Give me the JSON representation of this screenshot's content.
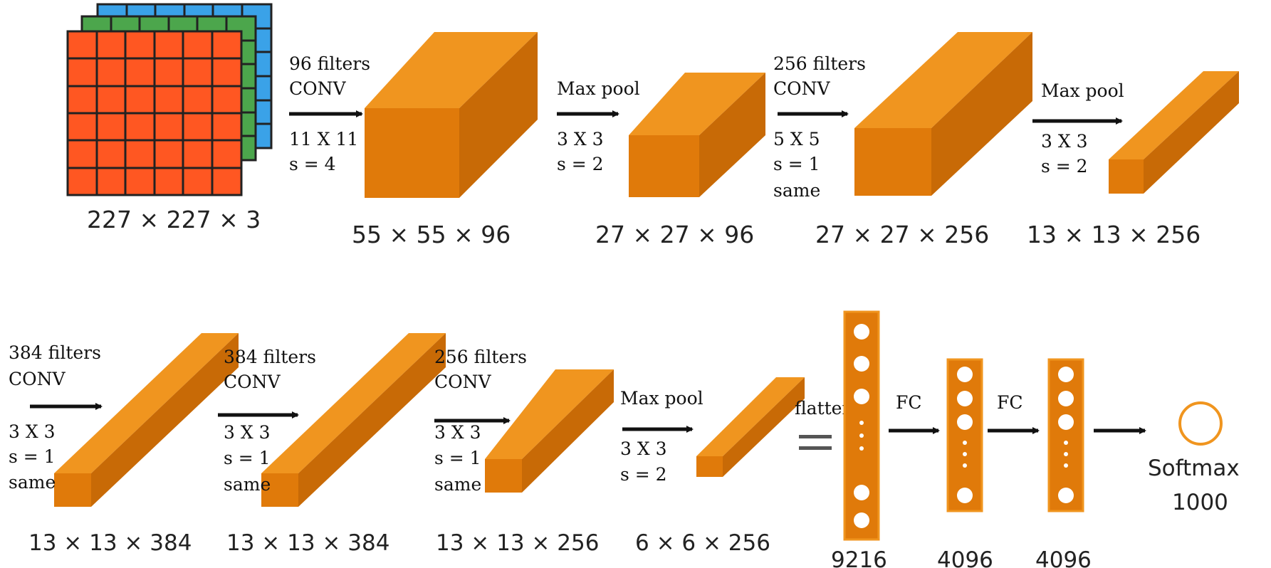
{
  "colors": {
    "block_front": "#E07A0A",
    "block_top": "#F0951F",
    "block_side": "#C86A06",
    "input_red": "#FF5722",
    "input_green": "#4CA64C",
    "input_blue": "#3AA2E8",
    "arrow": "#111111"
  },
  "row1": {
    "input_dim": "227 × 227 × 3",
    "op1": {
      "l1": "96 filters",
      "l2": "CONV",
      "l3": "11 X 11",
      "l4": "s = 4"
    },
    "dim1": "55 × 55 × 96",
    "op2": {
      "l1": "Max pool",
      "l2": "3 X 3",
      "l3": "s = 2"
    },
    "dim2": "27 × 27 × 96",
    "op3": {
      "l1": "256 filters",
      "l2": "CONV",
      "l3": "5 X 5",
      "l4": "s = 1",
      "l5": "same"
    },
    "dim3": "27 × 27 × 256",
    "op4": {
      "l1": "Max pool",
      "l2": "3 X 3",
      "l3": "s = 2"
    },
    "dim4": "13 × 13 × 256"
  },
  "row2": {
    "op5": {
      "l1": "384 filters",
      "l2": "CONV",
      "l3": "3 X 3",
      "l4": "s = 1",
      "l5": "same"
    },
    "dim5": "13 × 13 × 384",
    "op6": {
      "l1": "384 filters",
      "l2": "CONV",
      "l3": "3 X 3",
      "l4": "s = 1",
      "l5": "same"
    },
    "dim6": "13 × 13 × 384",
    "op7": {
      "l1": "256 filters",
      "l2": "CONV",
      "l3": "3 X 3",
      "l4": "s = 1",
      "l5": "same"
    },
    "dim7": "13 × 13 × 256",
    "op8": {
      "l1": "Max pool",
      "l2": "3 X 3",
      "l3": "s = 2"
    },
    "dim8": "6 × 6 × 256",
    "flatten": "flatten",
    "fc1": "FC",
    "fc2": "FC",
    "n1": "9216",
    "n2": "4096",
    "n3": "4096",
    "softmax": "Softmax",
    "softmax_n": "1000"
  }
}
